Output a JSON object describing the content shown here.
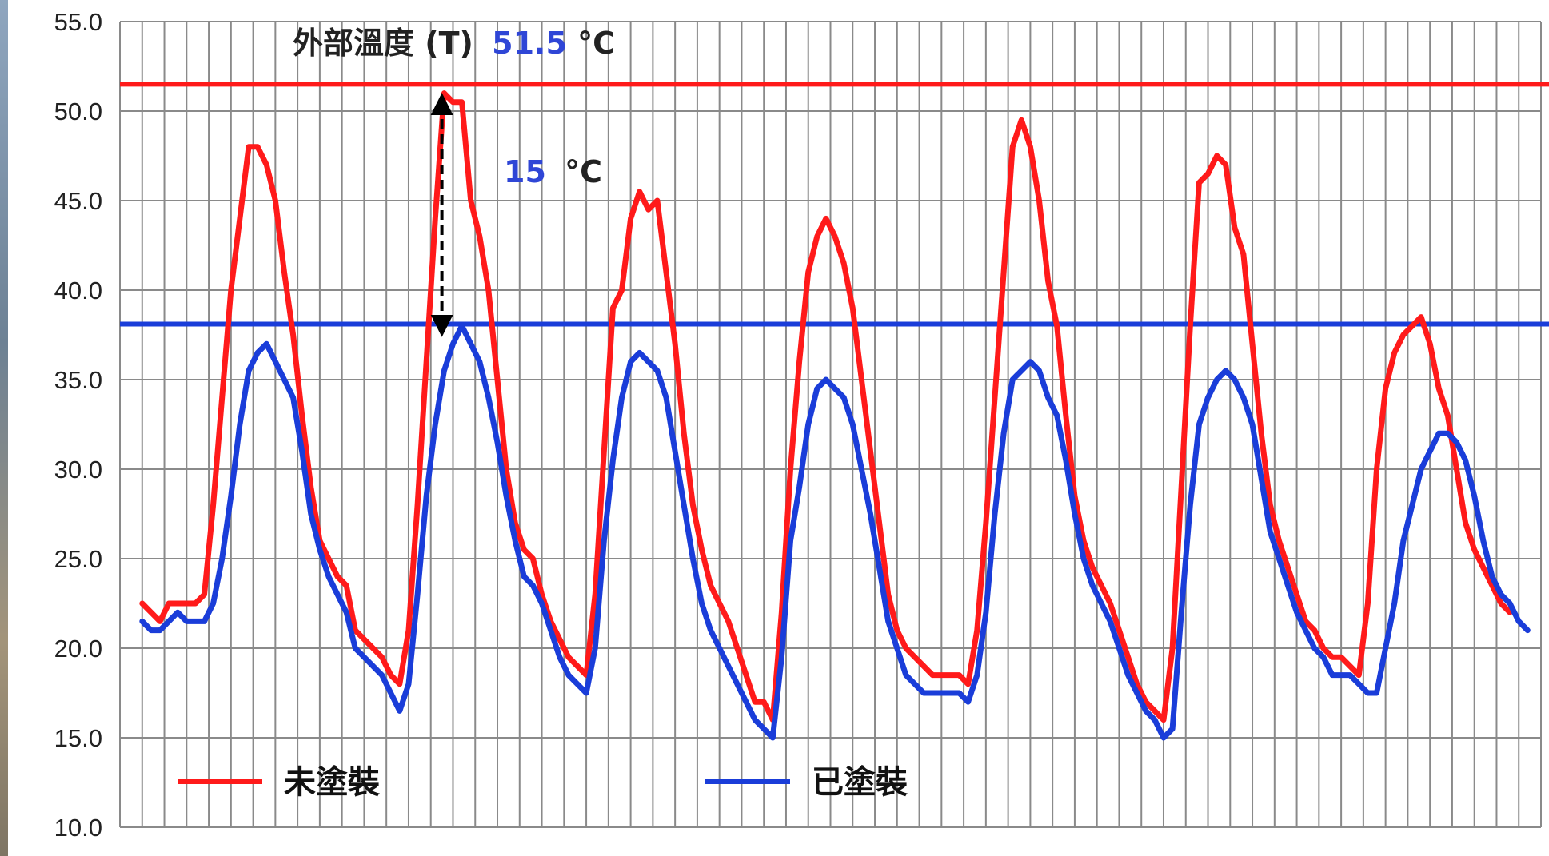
{
  "chart_data": {
    "type": "line",
    "title": "",
    "xlabel": "",
    "ylabel": "",
    "ylim": [
      10,
      55
    ],
    "yticks": [
      "10.0",
      "15.0",
      "20.0",
      "25.0",
      "30.0",
      "35.0",
      "40.0",
      "45.0",
      "50.0",
      "55.0"
    ],
    "grid": true,
    "legend_position": "bottom",
    "series": [
      {
        "name": "未塗裝",
        "color": "#ff1a1a",
        "points": [
          [
            1.0,
            22.5
          ],
          [
            1.4,
            22.0
          ],
          [
            1.8,
            21.5
          ],
          [
            2.2,
            22.5
          ],
          [
            2.6,
            22.5
          ],
          [
            3.0,
            22.5
          ],
          [
            3.4,
            22.5
          ],
          [
            3.8,
            23.0
          ],
          [
            4.2,
            28.0
          ],
          [
            4.6,
            34.0
          ],
          [
            5.0,
            40.0
          ],
          [
            5.4,
            44.0
          ],
          [
            5.8,
            48.0
          ],
          [
            6.2,
            48.0
          ],
          [
            6.6,
            47.0
          ],
          [
            7.0,
            45.0
          ],
          [
            7.4,
            41.0
          ],
          [
            7.8,
            37.5
          ],
          [
            8.2,
            33.0
          ],
          [
            8.6,
            29.0
          ],
          [
            9.0,
            26.0
          ],
          [
            9.4,
            25.0
          ],
          [
            9.8,
            24.0
          ],
          [
            10.2,
            23.5
          ],
          [
            10.6,
            21.0
          ],
          [
            11.0,
            20.5
          ],
          [
            11.4,
            20.0
          ],
          [
            11.8,
            19.5
          ],
          [
            12.2,
            18.5
          ],
          [
            12.6,
            18.0
          ],
          [
            13.0,
            21.0
          ],
          [
            13.4,
            28.0
          ],
          [
            13.8,
            36.0
          ],
          [
            14.2,
            44.0
          ],
          [
            14.6,
            51.0
          ],
          [
            15.0,
            50.5
          ],
          [
            15.4,
            50.5
          ],
          [
            15.8,
            45.0
          ],
          [
            16.2,
            43.0
          ],
          [
            16.6,
            40.0
          ],
          [
            17.0,
            35.0
          ],
          [
            17.4,
            30.0
          ],
          [
            17.8,
            27.0
          ],
          [
            18.2,
            25.5
          ],
          [
            18.6,
            25.0
          ],
          [
            19.0,
            23.0
          ],
          [
            19.4,
            21.5
          ],
          [
            19.8,
            20.5
          ],
          [
            20.2,
            19.5
          ],
          [
            20.6,
            19.0
          ],
          [
            21.0,
            18.5
          ],
          [
            21.4,
            23.0
          ],
          [
            21.8,
            31.0
          ],
          [
            22.2,
            39.0
          ],
          [
            22.6,
            40.0
          ],
          [
            23.0,
            44.0
          ],
          [
            23.4,
            45.5
          ],
          [
            23.8,
            44.5
          ],
          [
            24.2,
            45.0
          ],
          [
            24.6,
            41.0
          ],
          [
            25.0,
            37.0
          ],
          [
            25.4,
            32.0
          ],
          [
            25.8,
            28.0
          ],
          [
            26.2,
            25.5
          ],
          [
            26.6,
            23.5
          ],
          [
            27.0,
            22.5
          ],
          [
            27.4,
            21.5
          ],
          [
            27.8,
            20.0
          ],
          [
            28.2,
            18.5
          ],
          [
            28.6,
            17.0
          ],
          [
            29.0,
            17.0
          ],
          [
            29.4,
            16.0
          ],
          [
            29.8,
            22.0
          ],
          [
            30.2,
            30.0
          ],
          [
            30.6,
            36.0
          ],
          [
            31.0,
            41.0
          ],
          [
            31.4,
            43.0
          ],
          [
            31.8,
            44.0
          ],
          [
            32.2,
            43.0
          ],
          [
            32.6,
            41.5
          ],
          [
            33.0,
            39.0
          ],
          [
            33.4,
            35.0
          ],
          [
            33.8,
            31.0
          ],
          [
            34.2,
            27.0
          ],
          [
            34.6,
            23.0
          ],
          [
            35.0,
            21.0
          ],
          [
            35.4,
            20.0
          ],
          [
            35.8,
            19.5
          ],
          [
            36.2,
            19.0
          ],
          [
            36.6,
            18.5
          ],
          [
            37.0,
            18.5
          ],
          [
            37.4,
            18.5
          ],
          [
            37.8,
            18.5
          ],
          [
            38.2,
            18.0
          ],
          [
            38.6,
            21.0
          ],
          [
            39.0,
            27.0
          ],
          [
            39.4,
            34.0
          ],
          [
            39.8,
            41.0
          ],
          [
            40.2,
            48.0
          ],
          [
            40.6,
            49.5
          ],
          [
            41.0,
            48.0
          ],
          [
            41.4,
            45.0
          ],
          [
            41.8,
            40.5
          ],
          [
            42.2,
            38.0
          ],
          [
            42.6,
            33.0
          ],
          [
            43.0,
            28.5
          ],
          [
            43.4,
            26.0
          ],
          [
            43.8,
            24.5
          ],
          [
            44.2,
            23.5
          ],
          [
            44.6,
            22.5
          ],
          [
            45.0,
            21.0
          ],
          [
            45.4,
            19.5
          ],
          [
            45.8,
            18.0
          ],
          [
            46.2,
            17.0
          ],
          [
            46.6,
            16.5
          ],
          [
            47.0,
            16.0
          ],
          [
            47.4,
            20.0
          ],
          [
            47.8,
            29.0
          ],
          [
            48.2,
            38.0
          ],
          [
            48.6,
            46.0
          ],
          [
            49.0,
            46.5
          ],
          [
            49.4,
            47.5
          ],
          [
            49.8,
            47.0
          ],
          [
            50.2,
            43.5
          ],
          [
            50.6,
            42.0
          ],
          [
            51.0,
            37.0
          ],
          [
            51.4,
            32.0
          ],
          [
            51.8,
            28.0
          ],
          [
            52.2,
            26.0
          ],
          [
            52.6,
            24.5
          ],
          [
            53.0,
            23.0
          ],
          [
            53.4,
            21.5
          ],
          [
            53.8,
            21.0
          ],
          [
            54.2,
            20.0
          ],
          [
            54.6,
            19.5
          ],
          [
            55.0,
            19.5
          ],
          [
            55.4,
            19.0
          ],
          [
            55.8,
            18.5
          ],
          [
            56.2,
            22.5
          ],
          [
            56.6,
            30.0
          ],
          [
            57.0,
            34.5
          ],
          [
            57.4,
            36.5
          ],
          [
            57.8,
            37.5
          ],
          [
            58.2,
            38.0
          ],
          [
            58.6,
            38.5
          ],
          [
            59.0,
            37.0
          ],
          [
            59.4,
            34.5
          ],
          [
            59.8,
            33.0
          ],
          [
            60.2,
            30.0
          ],
          [
            60.6,
            27.0
          ],
          [
            61.0,
            25.5
          ],
          [
            61.4,
            24.5
          ],
          [
            61.8,
            23.5
          ],
          [
            62.2,
            22.5
          ],
          [
            62.6,
            22.0
          ]
        ]
      },
      {
        "name": "已塗裝",
        "color": "#1a3dd9",
        "points": [
          [
            1.0,
            21.5
          ],
          [
            1.4,
            21.0
          ],
          [
            1.8,
            21.0
          ],
          [
            2.2,
            21.5
          ],
          [
            2.6,
            22.0
          ],
          [
            3.0,
            21.5
          ],
          [
            3.4,
            21.5
          ],
          [
            3.8,
            21.5
          ],
          [
            4.2,
            22.5
          ],
          [
            4.6,
            25.0
          ],
          [
            5.0,
            28.5
          ],
          [
            5.4,
            32.5
          ],
          [
            5.8,
            35.5
          ],
          [
            6.2,
            36.5
          ],
          [
            6.6,
            37.0
          ],
          [
            7.0,
            36.0
          ],
          [
            7.4,
            35.0
          ],
          [
            7.8,
            34.0
          ],
          [
            8.2,
            31.0
          ],
          [
            8.6,
            27.5
          ],
          [
            9.0,
            25.5
          ],
          [
            9.4,
            24.0
          ],
          [
            9.8,
            23.0
          ],
          [
            10.2,
            22.0
          ],
          [
            10.6,
            20.0
          ],
          [
            11.0,
            19.5
          ],
          [
            11.4,
            19.0
          ],
          [
            11.8,
            18.5
          ],
          [
            12.2,
            17.5
          ],
          [
            12.6,
            16.5
          ],
          [
            13.0,
            18.0
          ],
          [
            13.4,
            23.0
          ],
          [
            13.8,
            28.5
          ],
          [
            14.2,
            32.5
          ],
          [
            14.6,
            35.5
          ],
          [
            15.0,
            37.0
          ],
          [
            15.4,
            38.0
          ],
          [
            15.8,
            37.0
          ],
          [
            16.2,
            36.0
          ],
          [
            16.6,
            34.0
          ],
          [
            17.0,
            31.5
          ],
          [
            17.4,
            28.5
          ],
          [
            17.8,
            26.0
          ],
          [
            18.2,
            24.0
          ],
          [
            18.6,
            23.5
          ],
          [
            19.0,
            22.5
          ],
          [
            19.4,
            21.0
          ],
          [
            19.8,
            19.5
          ],
          [
            20.2,
            18.5
          ],
          [
            20.6,
            18.0
          ],
          [
            21.0,
            17.5
          ],
          [
            21.4,
            20.0
          ],
          [
            21.8,
            26.0
          ],
          [
            22.2,
            30.5
          ],
          [
            22.6,
            34.0
          ],
          [
            23.0,
            36.0
          ],
          [
            23.4,
            36.5
          ],
          [
            23.8,
            36.0
          ],
          [
            24.2,
            35.5
          ],
          [
            24.6,
            34.0
          ],
          [
            25.0,
            31.0
          ],
          [
            25.4,
            28.0
          ],
          [
            25.8,
            25.0
          ],
          [
            26.2,
            22.5
          ],
          [
            26.6,
            21.0
          ],
          [
            27.0,
            20.0
          ],
          [
            27.4,
            19.0
          ],
          [
            27.8,
            18.0
          ],
          [
            28.2,
            17.0
          ],
          [
            28.6,
            16.0
          ],
          [
            29.0,
            15.5
          ],
          [
            29.4,
            15.0
          ],
          [
            29.8,
            19.5
          ],
          [
            30.2,
            26.0
          ],
          [
            30.6,
            29.0
          ],
          [
            31.0,
            32.5
          ],
          [
            31.4,
            34.5
          ],
          [
            31.8,
            35.0
          ],
          [
            32.2,
            34.5
          ],
          [
            32.6,
            34.0
          ],
          [
            33.0,
            32.5
          ],
          [
            33.4,
            30.0
          ],
          [
            33.8,
            27.5
          ],
          [
            34.2,
            24.5
          ],
          [
            34.6,
            21.5
          ],
          [
            35.0,
            20.0
          ],
          [
            35.4,
            18.5
          ],
          [
            35.8,
            18.0
          ],
          [
            36.2,
            17.5
          ],
          [
            36.6,
            17.5
          ],
          [
            37.0,
            17.5
          ],
          [
            37.4,
            17.5
          ],
          [
            37.8,
            17.5
          ],
          [
            38.2,
            17.0
          ],
          [
            38.6,
            18.5
          ],
          [
            39.0,
            22.0
          ],
          [
            39.4,
            27.5
          ],
          [
            39.8,
            32.0
          ],
          [
            40.2,
            35.0
          ],
          [
            40.6,
            35.5
          ],
          [
            41.0,
            36.0
          ],
          [
            41.4,
            35.5
          ],
          [
            41.8,
            34.0
          ],
          [
            42.2,
            33.0
          ],
          [
            42.6,
            30.5
          ],
          [
            43.0,
            27.5
          ],
          [
            43.4,
            25.0
          ],
          [
            43.8,
            23.5
          ],
          [
            44.2,
            22.5
          ],
          [
            44.6,
            21.5
          ],
          [
            45.0,
            20.0
          ],
          [
            45.4,
            18.5
          ],
          [
            45.8,
            17.5
          ],
          [
            46.2,
            16.5
          ],
          [
            46.6,
            16.0
          ],
          [
            47.0,
            15.0
          ],
          [
            47.4,
            15.5
          ],
          [
            47.8,
            22.0
          ],
          [
            48.2,
            28.0
          ],
          [
            48.6,
            32.5
          ],
          [
            49.0,
            34.0
          ],
          [
            49.4,
            35.0
          ],
          [
            49.8,
            35.5
          ],
          [
            50.2,
            35.0
          ],
          [
            50.6,
            34.0
          ],
          [
            51.0,
            32.5
          ],
          [
            51.4,
            29.5
          ],
          [
            51.8,
            26.5
          ],
          [
            52.2,
            25.0
          ],
          [
            52.6,
            23.5
          ],
          [
            53.0,
            22.0
          ],
          [
            53.4,
            21.0
          ],
          [
            53.8,
            20.0
          ],
          [
            54.2,
            19.5
          ],
          [
            54.6,
            18.5
          ],
          [
            55.0,
            18.5
          ],
          [
            55.4,
            18.5
          ],
          [
            55.8,
            18.0
          ],
          [
            56.2,
            17.5
          ],
          [
            56.6,
            17.5
          ],
          [
            57.0,
            20.0
          ],
          [
            57.4,
            22.5
          ],
          [
            57.8,
            26.0
          ],
          [
            58.2,
            28.0
          ],
          [
            58.6,
            30.0
          ],
          [
            59.0,
            31.0
          ],
          [
            59.4,
            32.0
          ],
          [
            59.8,
            32.0
          ],
          [
            60.2,
            31.5
          ],
          [
            60.6,
            30.5
          ],
          [
            61.0,
            28.5
          ],
          [
            61.4,
            26.0
          ],
          [
            61.8,
            24.0
          ],
          [
            62.2,
            23.0
          ],
          [
            62.6,
            22.5
          ],
          [
            63.0,
            21.5
          ],
          [
            63.4,
            21.0
          ]
        ]
      }
    ],
    "reference_lines": [
      {
        "value": 51.5,
        "color": "#ff1a1a"
      },
      {
        "value": 38.1,
        "color": "#1a3dd9"
      }
    ],
    "annotations": {
      "outside_label": "外部溫度 (T)",
      "outside_value": "51.5",
      "outside_unit": "°C",
      "diff_value": "15",
      "diff_unit": "°C",
      "arrow_x": 14.5,
      "arrow_from": 50.4,
      "arrow_to": 38.0,
      "highlight_color": "#2f46d6"
    }
  }
}
